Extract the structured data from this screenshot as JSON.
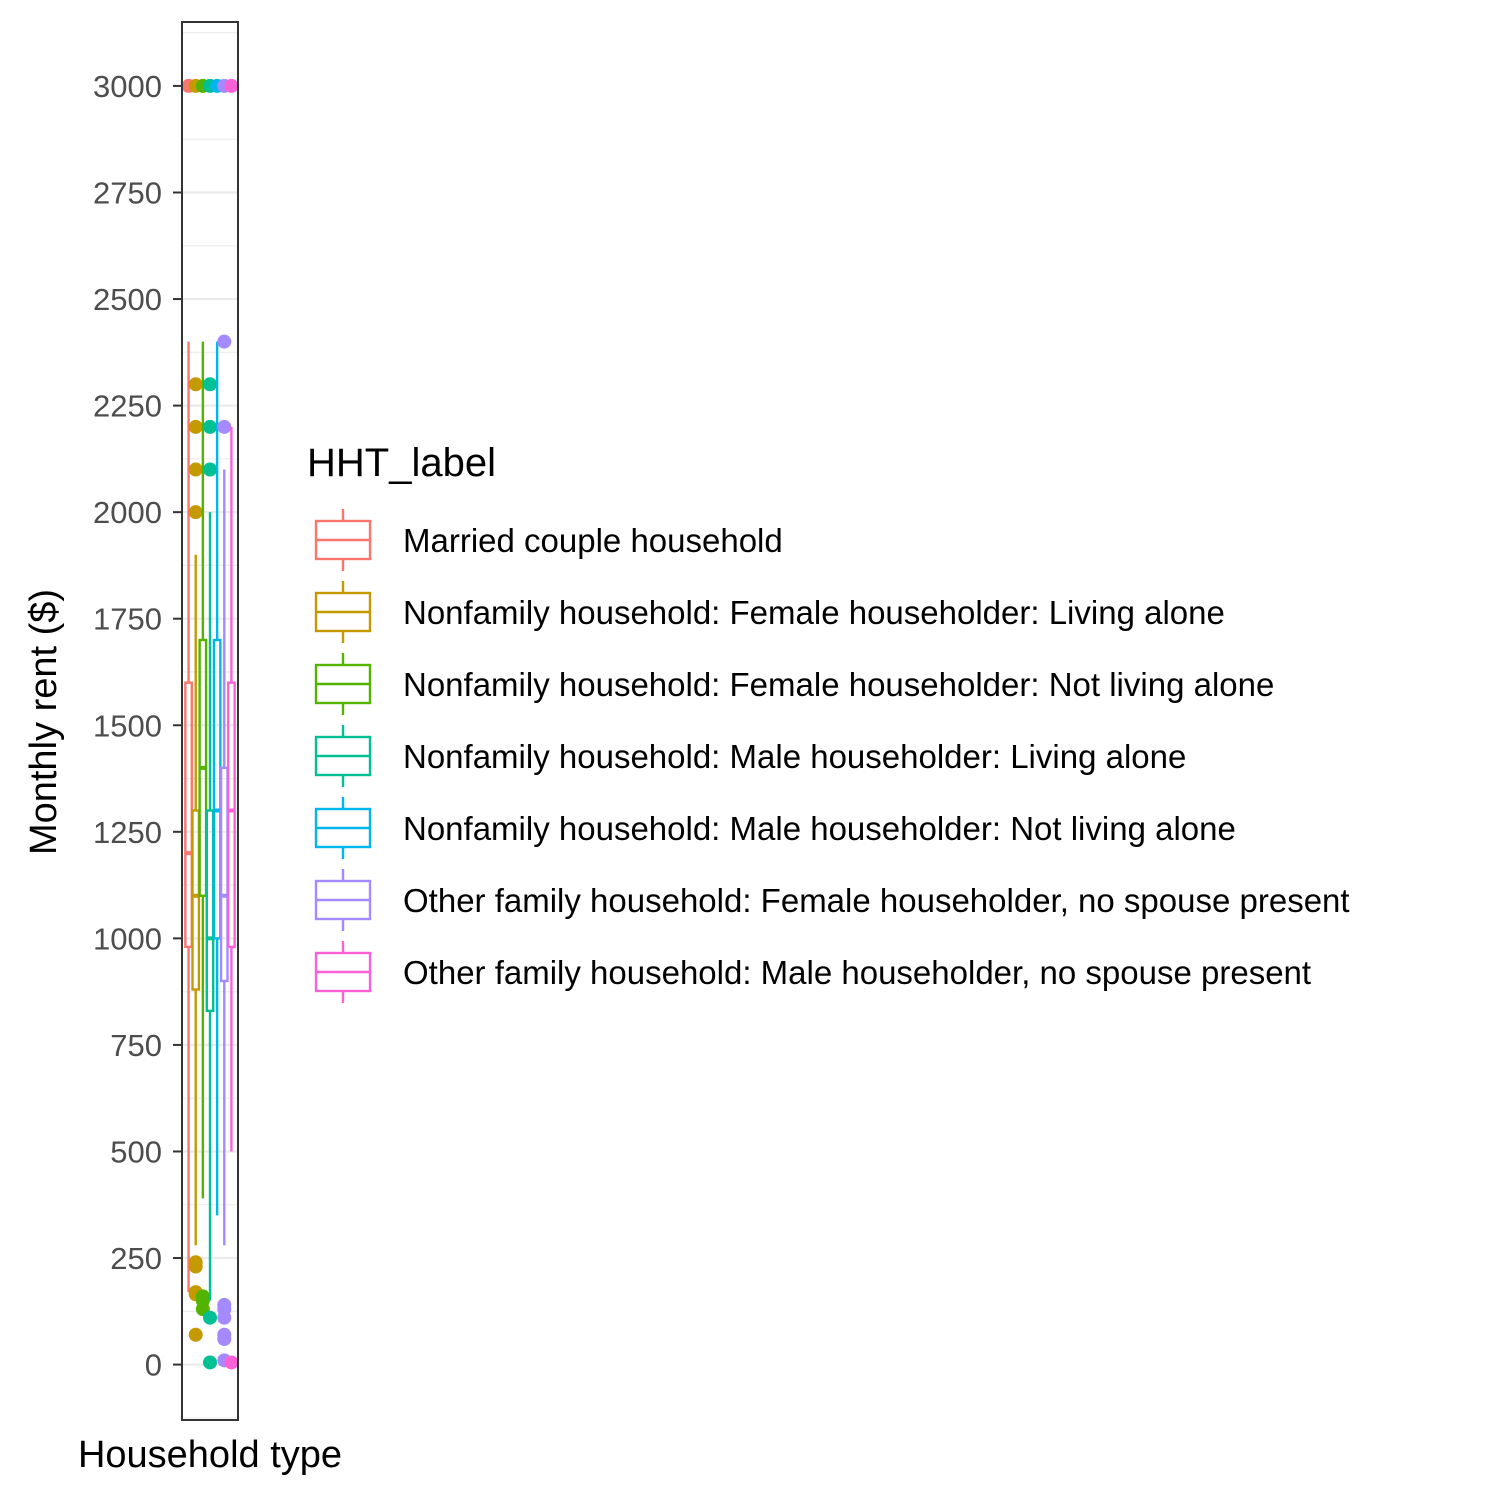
{
  "chart_data": {
    "type": "box",
    "xlabel": "Household type",
    "ylabel": "Monthly rent ($)",
    "ylim": [
      -130,
      3150
    ],
    "y_ticks": [
      0,
      250,
      500,
      750,
      1000,
      1250,
      1500,
      1750,
      2000,
      2250,
      2500,
      2750,
      3000
    ],
    "grid": true,
    "legend": {
      "title": "HHT_label",
      "position": "right"
    },
    "series": [
      {
        "name": "Married couple household",
        "color": "#F8766D",
        "min": 170,
        "q1": 980,
        "median": 1200,
        "q3": 1600,
        "max": 2400,
        "outliers": [
          3000
        ]
      },
      {
        "name": "Nonfamily household: Female householder: Living alone",
        "color": "#C49A00",
        "min": 280,
        "q1": 880,
        "median": 1100,
        "q3": 1300,
        "max": 1900,
        "outliers": [
          2300,
          2200,
          2100,
          2000,
          240,
          230,
          170,
          165,
          70,
          3000
        ]
      },
      {
        "name": "Nonfamily household: Female householder: Not living alone",
        "color": "#53B400",
        "min": 390,
        "q1": 1100,
        "median": 1400,
        "q3": 1700,
        "max": 2400,
        "outliers": [
          160,
          150,
          130,
          3000
        ]
      },
      {
        "name": "Nonfamily household: Male householder: Living alone",
        "color": "#00C094",
        "min": 150,
        "q1": 830,
        "median": 1000,
        "q3": 1300,
        "max": 2000,
        "outliers": [
          2300,
          2200,
          2100,
          110,
          5,
          3000
        ]
      },
      {
        "name": "Nonfamily household: Male householder: Not living alone",
        "color": "#00B6EB",
        "min": 350,
        "q1": 1000,
        "median": 1300,
        "q3": 1700,
        "max": 2400,
        "outliers": [
          3000
        ]
      },
      {
        "name": "Other family household: Female householder, no spouse present",
        "color": "#A58AFF",
        "min": 280,
        "q1": 900,
        "median": 1100,
        "q3": 1400,
        "max": 2100,
        "outliers": [
          2400,
          2200,
          140,
          130,
          110,
          70,
          60,
          10,
          3000
        ]
      },
      {
        "name": "Other family household: Male householder, no spouse present",
        "color": "#FB61D7",
        "min": 500,
        "q1": 980,
        "median": 1300,
        "q3": 1600,
        "max": 2200,
        "outliers": [
          5,
          3000
        ]
      }
    ]
  }
}
